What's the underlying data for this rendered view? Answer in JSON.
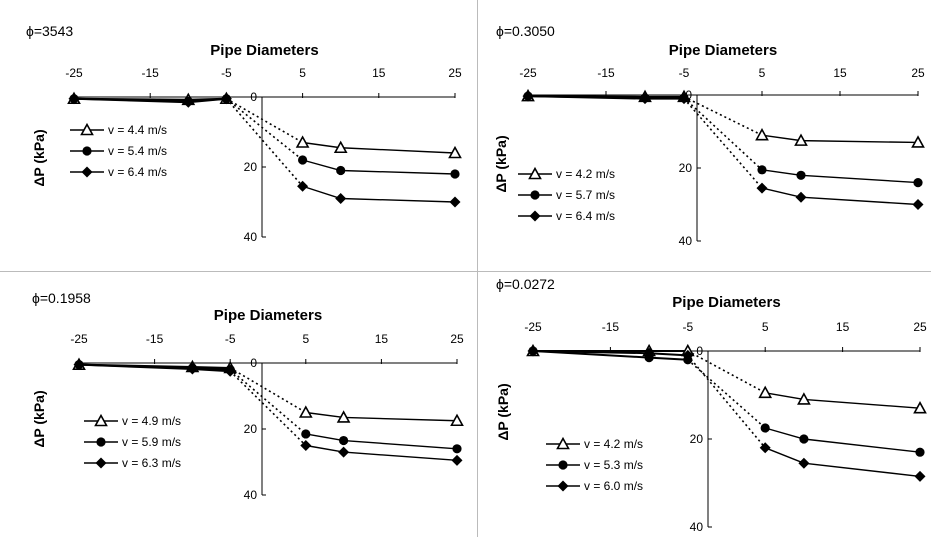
{
  "chart_data": [
    {
      "type": "line",
      "title": "ϕ=3543",
      "xlabel": "Pipe Diameters",
      "ylabel": "ΔP (kPa)",
      "xlim": [
        -25,
        25
      ],
      "ylim": [
        0,
        40
      ],
      "y_inverted": true,
      "x_axis_position": "top",
      "xticks": [
        -25,
        -15,
        -5,
        5,
        15,
        25
      ],
      "yticks": [
        0,
        20,
        40
      ],
      "x": [
        -25,
        -10,
        -5,
        5,
        10,
        25
      ],
      "series": [
        {
          "name": "v = 4.4 m/s",
          "marker": "triangle-open",
          "values": [
            0.5,
            0.8,
            0.5,
            13,
            14.5,
            16
          ]
        },
        {
          "name": "v = 5.4 m/s",
          "marker": "circle",
          "values": [
            0.5,
            1.2,
            0.5,
            18,
            21,
            22
          ]
        },
        {
          "name": "v = 6.4 m/s",
          "marker": "diamond",
          "values": [
            0.5,
            1.5,
            0.5,
            25.5,
            29,
            30
          ]
        }
      ],
      "dotted_segment": "between x = -5 and x = 5",
      "legend_position": "left"
    },
    {
      "type": "line",
      "title": "ϕ=0.3050",
      "xlabel": "Pipe Diameters",
      "ylabel": "ΔP (kPa)",
      "xlim": [
        -25,
        25
      ],
      "ylim": [
        0,
        40
      ],
      "y_inverted": true,
      "x_axis_position": "top",
      "xticks": [
        -25,
        -15,
        -5,
        5,
        15,
        25
      ],
      "yticks": [
        0,
        20,
        40
      ],
      "x": [
        -25,
        -10,
        -5,
        5,
        10,
        25
      ],
      "series": [
        {
          "name": "v = 4.2 m/s",
          "marker": "triangle-open",
          "values": [
            0.3,
            0.5,
            0.5,
            11,
            12.5,
            13
          ]
        },
        {
          "name": "v = 5.7 m/s",
          "marker": "circle",
          "values": [
            0.3,
            0.8,
            0.8,
            20.5,
            22,
            24
          ]
        },
        {
          "name": "v = 6.4 m/s",
          "marker": "diamond",
          "values": [
            0.3,
            1.0,
            1.0,
            25.5,
            28,
            30
          ]
        }
      ],
      "dotted_segment": "between x = -5 and x = 5",
      "legend_position": "left"
    },
    {
      "type": "line",
      "title": "ϕ=0.1958",
      "xlabel": "Pipe Diameters",
      "ylabel": "ΔP (kPa)",
      "xlim": [
        -25,
        25
      ],
      "ylim": [
        0,
        40
      ],
      "y_inverted": true,
      "x_axis_position": "top",
      "xticks": [
        -25,
        -15,
        -5,
        5,
        15,
        25
      ],
      "yticks": [
        0,
        20,
        40
      ],
      "x": [
        -25,
        -10,
        -5,
        5,
        10,
        25
      ],
      "series": [
        {
          "name": "v = 4.9 m/s",
          "marker": "triangle-open",
          "values": [
            0.5,
            1.2,
            1.5,
            15,
            16.5,
            17.5
          ]
        },
        {
          "name": "v = 5.9 m/s",
          "marker": "circle",
          "values": [
            0.5,
            1.5,
            2.0,
            21.5,
            23.5,
            26
          ]
        },
        {
          "name": "v = 6.3 m/s",
          "marker": "diamond",
          "values": [
            0.5,
            1.8,
            2.5,
            25,
            27,
            29.5
          ]
        }
      ],
      "dotted_segment": "between x = -5 and x = 5",
      "legend_position": "left"
    },
    {
      "type": "line",
      "title": "ϕ=0.0272",
      "xlabel": "Pipe Diameters",
      "ylabel": "ΔP (kPa)",
      "xlim": [
        -25,
        25
      ],
      "ylim": [
        0,
        40
      ],
      "y_inverted": true,
      "x_axis_position": "top",
      "xticks": [
        -25,
        -15,
        -5,
        5,
        15,
        25
      ],
      "yticks": [
        0,
        20,
        40
      ],
      "x": [
        -25,
        -10,
        -5,
        5,
        10,
        25
      ],
      "series": [
        {
          "name": "v = 4.2 m/s",
          "marker": "triangle-open",
          "values": [
            0.0,
            0.0,
            0.0,
            9.5,
            11,
            13
          ]
        },
        {
          "name": "v = 5.3 m/s",
          "marker": "circle",
          "values": [
            0.0,
            1.5,
            2.0,
            17.5,
            20,
            23
          ]
        },
        {
          "name": "v = 6.0 m/s",
          "marker": "diamond",
          "values": [
            0.0,
            0.5,
            1.0,
            22,
            25.5,
            28.5
          ]
        }
      ],
      "dotted_segment": "between x = -5 and x = 5",
      "legend_position": "left"
    }
  ]
}
